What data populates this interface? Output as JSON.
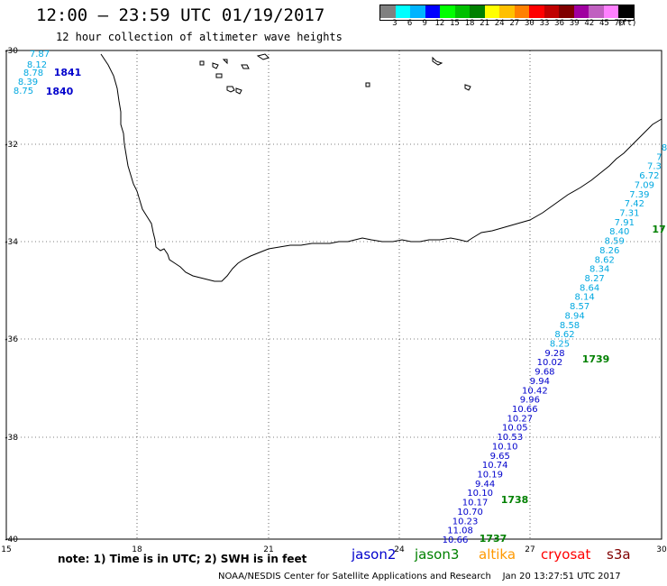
{
  "header": {
    "title": "12:00 – 23:59 UTC 01/19/2017",
    "subtitle": "12 hour collection of altimeter wave heights"
  },
  "legend": {
    "colors": [
      "#808080",
      "#00ffff",
      "#00b4ff",
      "#0000ff",
      "#00ff00",
      "#00c000",
      "#008000",
      "#ffff00",
      "#ffc000",
      "#ff8000",
      "#ff0000",
      "#c00000",
      "#800000",
      "#a000a0",
      "#c060c0",
      "#ff80ff",
      "#000000"
    ],
    "labels": [
      "3",
      "6",
      "9",
      "12",
      "15",
      "18",
      "21",
      "24",
      "27",
      "30",
      "33",
      "36",
      "39",
      "42",
      "45",
      "70",
      "(ft)"
    ]
  },
  "axes": {
    "lon_labels": [
      "15",
      "18",
      "21",
      "24",
      "27",
      "30"
    ],
    "lat_labels": [
      "-30",
      "-32",
      "-34",
      "-36",
      "-38",
      "-40"
    ]
  },
  "satellites": [
    {
      "name": "jason2",
      "color": "#0000cc"
    },
    {
      "name": "jason3",
      "color": "#008000"
    },
    {
      "name": "altika",
      "color": "#ff9900"
    },
    {
      "name": "cryosat",
      "color": "#ff0000"
    },
    {
      "name": "s3a",
      "color": "#800000"
    }
  ],
  "note": "note: 1) Time is in UTC; 2) SWH is in feet",
  "footer": "NOAA/NESDIS Center for Satellite Applications and Research    Jan 20 13:27:51 UTC 2017",
  "tracks": {
    "west_values": [
      "7.87",
      "8.12",
      "8.78",
      "8.39",
      "8.75"
    ],
    "west_times": [
      "1841",
      "1840"
    ],
    "east_values": [
      "8",
      "7",
      "7.3",
      "6.72",
      "7.09",
      "7.39",
      "7.42",
      "7.31",
      "7.91",
      "8.40",
      "8.59",
      "8.26",
      "8.62",
      "8.34",
      "8.27",
      "8.64",
      "8.14",
      "8.57",
      "8.94",
      "8.58",
      "8.62",
      "8.25",
      "9.28",
      "10.02",
      "9.68",
      "9.94",
      "10.42",
      "9.96",
      "10.66",
      "10.27",
      "10.05",
      "10.53",
      "10.10",
      "9.65",
      "10.74",
      "10.19",
      "9.44",
      "10.10",
      "10.17",
      "10.70",
      "10.23",
      "11.08",
      "10.66"
    ],
    "east_times": [
      "17",
      "1739",
      "1738",
      "1737"
    ]
  }
}
